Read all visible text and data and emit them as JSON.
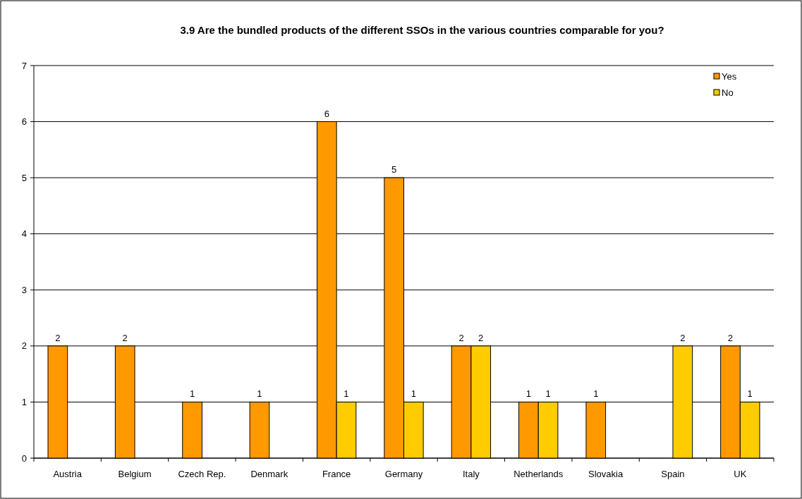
{
  "chart_data": {
    "type": "bar",
    "title": "3.9 Are the bundled products of the different SSOs in the various countries comparable for you?",
    "categories": [
      "Austria",
      "Belgium",
      "Czech Rep.",
      "Denmark",
      "France",
      "Germany",
      "Italy",
      "Netherlands",
      "Slovakia",
      "Spain",
      "UK"
    ],
    "series": [
      {
        "name": "Yes",
        "color": "#ff9900",
        "values": [
          2,
          2,
          1,
          1,
          6,
          5,
          2,
          1,
          1,
          null,
          2
        ]
      },
      {
        "name": "No",
        "color": "#ffcc00",
        "values": [
          null,
          null,
          null,
          null,
          1,
          1,
          2,
          1,
          null,
          2,
          1
        ]
      }
    ],
    "ylim": [
      0,
      7
    ],
    "yticks": [
      0,
      1,
      2,
      3,
      4,
      5,
      6,
      7
    ],
    "grid": "y",
    "legend": "top right",
    "data_labels": true
  }
}
